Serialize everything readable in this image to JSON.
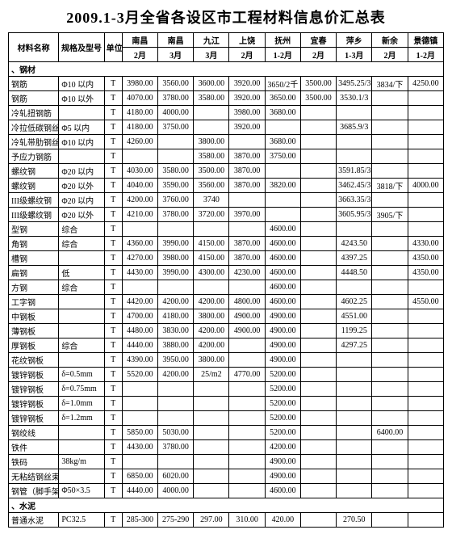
{
  "title": "2009.1-3月全省各设区市工程材料信息价汇总表",
  "header": {
    "name": "材料名称",
    "spec": "规格及型号",
    "unit": "单位",
    "cities": [
      "南昌",
      "南昌",
      "九江",
      "上饶",
      "抚州",
      "宜春",
      "萍乡",
      "新余",
      "景德镇"
    ],
    "months": [
      "2月",
      "3月",
      "3月",
      "2月",
      "1-2月",
      "2月",
      "1-3月",
      "2月",
      "1-2月"
    ]
  },
  "section1": "、钢材",
  "rows1": [
    {
      "n": "钢筋",
      "s": "Φ10 以内",
      "u": "T",
      "v": [
        "3980.00",
        "3560.00",
        "3600.00",
        "3920.00",
        "3650/2千",
        "3500.00",
        "3495.25/3",
        "3834/下",
        "4250.00"
      ]
    },
    {
      "n": "钢筋",
      "s": "Φ10 以外",
      "u": "T",
      "v": [
        "4070.00",
        "3780.00",
        "3580.00",
        "3920.00",
        "3650.00",
        "3500.00",
        "3530.1/3",
        "",
        ""
      ]
    },
    {
      "n": "冷轧扭钢筋",
      "s": "",
      "u": "T",
      "v": [
        "4180.00",
        "4000.00",
        "",
        "3980.00",
        "3680.00",
        "",
        "",
        "",
        ""
      ]
    },
    {
      "n": "冷拉低碳钢丝",
      "s": "Φ5 以内",
      "u": "T",
      "v": [
        "4180.00",
        "3750.00",
        "",
        "3920.00",
        "",
        "",
        "3685.9/3",
        "",
        ""
      ]
    },
    {
      "n": "冷轧带肋钢丝",
      "s": "Φ10 以内",
      "u": "T",
      "v": [
        "4260.00",
        "",
        "3800.00",
        "",
        "3680.00",
        "",
        "",
        "",
        ""
      ]
    },
    {
      "n": "予应力钢筋",
      "s": "",
      "u": "T",
      "v": [
        "",
        "",
        "3580.00",
        "3870.00",
        "3750.00",
        "",
        "",
        "",
        ""
      ]
    },
    {
      "n": "螺纹钢",
      "s": "Φ20 以内",
      "u": "T",
      "v": [
        "4030.00",
        "3580.00",
        "3500.00",
        "3870.00",
        "",
        "",
        "3591.85/3",
        "",
        ""
      ]
    },
    {
      "n": "螺纹钢",
      "s": "Φ20 以外",
      "u": "T",
      "v": [
        "4040.00",
        "3590.00",
        "3560.00",
        "3870.00",
        "3820.00",
        "",
        "3462.45/3",
        "3818/下",
        "4000.00"
      ]
    },
    {
      "n": "III级螺纹钢",
      "s": "Φ20 以内",
      "u": "T",
      "v": [
        "4200.00",
        "3760.00",
        "3740",
        "",
        "",
        "",
        "3663.35/3",
        "",
        ""
      ]
    },
    {
      "n": "III级螺纹钢",
      "s": "Φ20 以外",
      "u": "T",
      "v": [
        "4210.00",
        "3780.00",
        "3720.00",
        "3970.00",
        "",
        "",
        "3605.95/3",
        "3905/下",
        ""
      ]
    },
    {
      "n": "型钢",
      "s": "综合",
      "u": "T",
      "v": [
        "",
        "",
        "",
        "",
        "4600.00",
        "",
        "",
        "",
        ""
      ]
    },
    {
      "n": "角钢",
      "s": "综合",
      "u": "T",
      "v": [
        "4360.00",
        "3990.00",
        "4150.00",
        "3870.00",
        "4600.00",
        "",
        "4243.50",
        "",
        "4330.00"
      ]
    },
    {
      "n": "槽钢",
      "s": "",
      "u": "T",
      "v": [
        "4270.00",
        "3980.00",
        "4150.00",
        "3870.00",
        "4600.00",
        "",
        "4397.25",
        "",
        "4350.00"
      ]
    },
    {
      "n": "扁钢",
      "s": "低",
      "u": "T",
      "v": [
        "4430.00",
        "3990.00",
        "4300.00",
        "4230.00",
        "4600.00",
        "",
        "4448.50",
        "",
        "4350.00"
      ]
    },
    {
      "n": "方钢",
      "s": "综合",
      "u": "T",
      "v": [
        "",
        "",
        "",
        "",
        "4600.00",
        "",
        "",
        "",
        ""
      ]
    },
    {
      "n": "工字钢",
      "s": "",
      "u": "T",
      "v": [
        "4420.00",
        "4200.00",
        "4200.00",
        "4800.00",
        "4600.00",
        "",
        "4602.25",
        "",
        "4550.00"
      ]
    },
    {
      "n": "中钢板",
      "s": "",
      "u": "T",
      "v": [
        "4700.00",
        "4180.00",
        "3800.00",
        "4900.00",
        "4900.00",
        "",
        "4551.00",
        "",
        ""
      ]
    },
    {
      "n": "薄钢板",
      "s": "",
      "u": "T",
      "v": [
        "4480.00",
        "3830.00",
        "4200.00",
        "4900.00",
        "4900.00",
        "",
        "1199.25",
        "",
        ""
      ]
    },
    {
      "n": "厚钢板",
      "s": "综合",
      "u": "T",
      "v": [
        "4440.00",
        "3880.00",
        "4200.00",
        "",
        "4900.00",
        "",
        "4297.25",
        "",
        ""
      ]
    },
    {
      "n": "花纹钢板",
      "s": "",
      "u": "T",
      "v": [
        "4390.00",
        "3950.00",
        "3800.00",
        "",
        "4900.00",
        "",
        "",
        "",
        ""
      ]
    },
    {
      "n": "镀锌钢板",
      "s": "δ=0.5mm",
      "u": "T",
      "v": [
        "5520.00",
        "4200.00",
        "25/m2",
        "4770.00",
        "5200.00",
        "",
        "",
        "",
        ""
      ]
    },
    {
      "n": "镀锌钢板",
      "s": "δ=0.75mm",
      "u": "T",
      "v": [
        "",
        "",
        "",
        "",
        "5200.00",
        "",
        "",
        "",
        ""
      ]
    },
    {
      "n": "镀锌钢板",
      "s": "δ=1.0mm",
      "u": "T",
      "v": [
        "",
        "",
        "",
        "",
        "5200.00",
        "",
        "",
        "",
        ""
      ]
    },
    {
      "n": "镀锌钢板",
      "s": "δ=1.2mm",
      "u": "T",
      "v": [
        "",
        "",
        "",
        "",
        "5200.00",
        "",
        "",
        "",
        ""
      ]
    },
    {
      "n": "钢绞线",
      "s": "",
      "u": "T",
      "v": [
        "5850.00",
        "5030.00",
        "",
        "",
        "5200.00",
        "",
        "",
        "6400.00",
        ""
      ]
    },
    {
      "n": "铁件",
      "s": "",
      "u": "T",
      "v": [
        "4430.00",
        "3780.00",
        "",
        "",
        "4200.00",
        "",
        "",
        "",
        ""
      ]
    },
    {
      "n": "铁码",
      "s": "38kg/m",
      "u": "T",
      "v": [
        "",
        "",
        "",
        "",
        "4900.00",
        "",
        "",
        "",
        ""
      ]
    },
    {
      "n": "无粘结钢丝束",
      "s": "",
      "u": "T",
      "v": [
        "6850.00",
        "6020.00",
        "",
        "",
        "4900.00",
        "",
        "",
        "",
        ""
      ]
    },
    {
      "n": "钢管（脚手架）",
      "s": "Φ50×3.5",
      "u": "T",
      "v": [
        "4440.00",
        "4000.00",
        "",
        "",
        "4600.00",
        "",
        "",
        "",
        ""
      ]
    }
  ],
  "section2": "、水泥",
  "rows2": [
    {
      "n": "普通水泥",
      "s": "PC32.5",
      "u": "T",
      "v": [
        "285-300",
        "275-290",
        "297.00",
        "310.00",
        "420.00",
        "",
        "270.50",
        "",
        ""
      ]
    }
  ],
  "style": {
    "bg": "#ffffff",
    "grid": "#000000",
    "title_fontsize": 18,
    "cell_fontsize": 10
  }
}
